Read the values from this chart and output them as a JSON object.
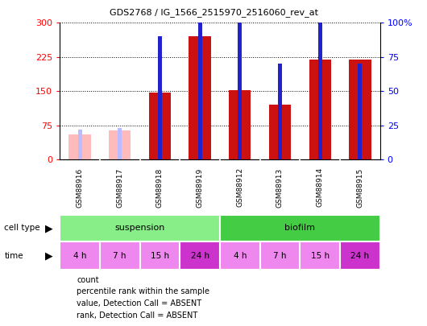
{
  "title": "GDS2768 / IG_1566_2515970_2516060_rev_at",
  "samples": [
    "GSM88916",
    "GSM88917",
    "GSM88918",
    "GSM88919",
    "GSM88912",
    "GSM88913",
    "GSM88914",
    "GSM88915"
  ],
  "count_values": [
    0,
    0,
    147,
    270,
    153,
    120,
    220,
    220
  ],
  "rank_values": [
    22,
    23,
    90,
    145,
    125,
    70,
    120,
    70
  ],
  "absent_count": [
    55,
    65,
    0,
    0,
    0,
    0,
    0,
    0
  ],
  "absent_rank": [
    22,
    23,
    0,
    0,
    0,
    0,
    0,
    0
  ],
  "is_absent": [
    true,
    true,
    false,
    false,
    false,
    false,
    false,
    false
  ],
  "cell_types": [
    {
      "label": "suspension",
      "span": [
        0,
        4
      ],
      "color": "#88ee88"
    },
    {
      "label": "biofilm",
      "span": [
        4,
        8
      ],
      "color": "#44cc44"
    }
  ],
  "time_labels": [
    "4 h",
    "7 h",
    "15 h",
    "24 h",
    "4 h",
    "7 h",
    "15 h",
    "24 h"
  ],
  "time_colors": [
    "#ee88ee",
    "#ee88ee",
    "#ee88ee",
    "#cc33cc",
    "#ee88ee",
    "#ee88ee",
    "#ee88ee",
    "#cc33cc"
  ],
  "ylim_left": [
    0,
    300
  ],
  "ylim_right": [
    0,
    100
  ],
  "yticks_left": [
    0,
    75,
    150,
    225,
    300
  ],
  "yticks_right": [
    0,
    25,
    50,
    75,
    100
  ],
  "bar_color": "#cc1111",
  "rank_color": "#2222cc",
  "absent_bar_color": "#ffbbbb",
  "absent_rank_color": "#bbbbff",
  "legend_items": [
    {
      "label": "count",
      "color": "#cc1111"
    },
    {
      "label": "percentile rank within the sample",
      "color": "#2222cc"
    },
    {
      "label": "value, Detection Call = ABSENT",
      "color": "#ffbbbb"
    },
    {
      "label": "rank, Detection Call = ABSENT",
      "color": "#bbbbff"
    }
  ],
  "bar_width": 0.55,
  "rank_bar_width": 0.1
}
